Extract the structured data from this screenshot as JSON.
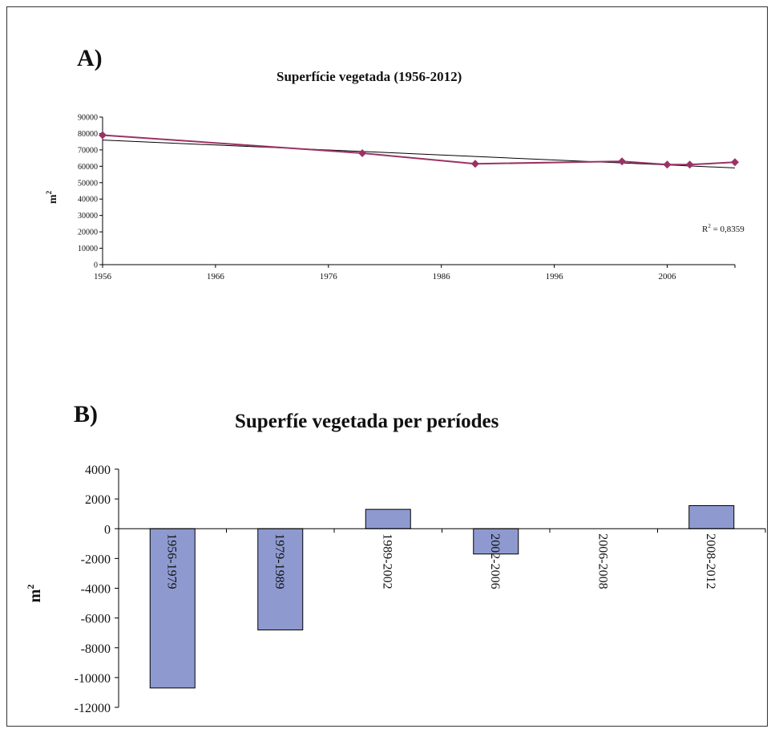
{
  "panels": {
    "a_label": "A)",
    "b_label": "B)"
  },
  "chart_data": [
    {
      "type": "line",
      "title": "Superfície vegetada (1956-2012)",
      "ylabel": "m",
      "ylabel_superscript": "2",
      "xlim": [
        1956,
        2012
      ],
      "ylim": [
        0,
        90000
      ],
      "x_ticks": [
        1956,
        1966,
        1976,
        1986,
        1996,
        2006
      ],
      "y_ticks": [
        0,
        10000,
        20000,
        30000,
        40000,
        50000,
        60000,
        70000,
        80000,
        90000
      ],
      "grid": false,
      "series": [
        {
          "x": [
            1956,
            1979,
            1989,
            2002,
            2006,
            2008,
            2012
          ],
          "y": [
            79000,
            68000,
            61500,
            63000,
            61000,
            61000,
            62500
          ],
          "color": "#993366",
          "marker": "diamond"
        }
      ],
      "trendline": {
        "type": "linear",
        "x": [
          1956,
          2012
        ],
        "y": [
          76000,
          59000
        ],
        "color": "#000000"
      },
      "annotation": {
        "text": "R",
        "superscript": "2",
        "suffix": " = 0,8359"
      }
    },
    {
      "type": "bar",
      "title": "Superfíe vegetada per períodes",
      "ylabel": "m",
      "ylabel_superscript": "2",
      "categories": [
        "1956-1979",
        "1979-1989",
        "1989-2002",
        "2002-2006",
        "2006-2008",
        "2008-2012"
      ],
      "values": [
        -10700,
        -6800,
        1300,
        -1700,
        0,
        1550
      ],
      "ylim": [
        -12000,
        4000
      ],
      "y_ticks": [
        4000,
        2000,
        0,
        -2000,
        -4000,
        -6000,
        -8000,
        -10000,
        -12000
      ],
      "bar_color": "#8e9acf",
      "grid": false
    }
  ]
}
